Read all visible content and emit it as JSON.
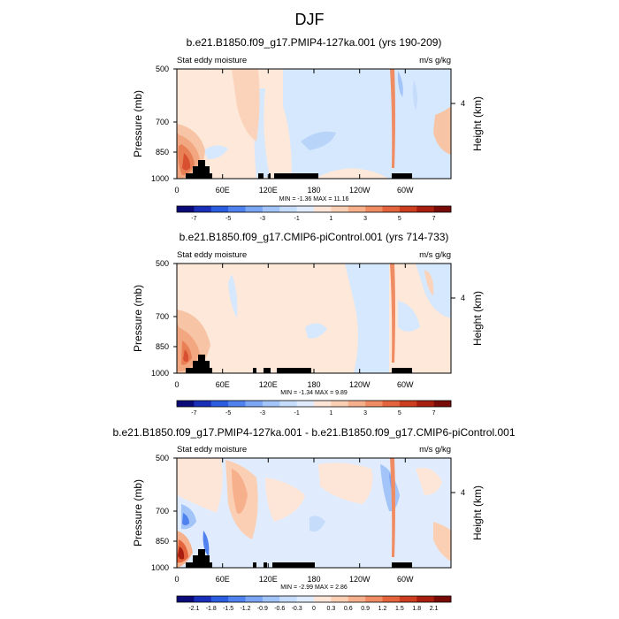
{
  "chart_data": {
    "type": "contour",
    "title": "DJF",
    "panels": [
      {
        "title": "b.e21.B1850.f09_g17.PMIP4-127ka.001 (yrs 190-209)",
        "left_label": "Stat eddy moisture",
        "right_label": "m/s g/kg",
        "ylabel": "Pressure (mb)",
        "ylabel_right": "Height (km)",
        "yticks": [
          "500",
          "700",
          "850",
          "1000"
        ],
        "yticks_right": [
          "4"
        ],
        "xticks": [
          "0",
          "60E",
          "120E",
          "180",
          "120W",
          "60W"
        ],
        "stats": "MIN = -1.36  MAX = 11.16",
        "colorbar_ticks": [
          "-7",
          "-5",
          "-3",
          "-1",
          "1",
          "3",
          "5",
          "7"
        ],
        "colorbar_min": -8,
        "colorbar_max": 8
      },
      {
        "title": "b.e21.B1850.f09_g17.CMIP6-piControl.001 (yrs 714-733)",
        "left_label": "Stat eddy moisture",
        "right_label": "m/s g/kg",
        "ylabel": "Pressure (mb)",
        "ylabel_right": "Height (km)",
        "yticks": [
          "500",
          "700",
          "850",
          "1000"
        ],
        "yticks_right": [
          "4"
        ],
        "xticks": [
          "0",
          "60E",
          "120E",
          "180",
          "120W",
          "60W"
        ],
        "stats": "MIN = -1.34  MAX =  9.89",
        "colorbar_ticks": [
          "-7",
          "-5",
          "-3",
          "-1",
          "1",
          "3",
          "5",
          "7"
        ],
        "colorbar_min": -8,
        "colorbar_max": 8
      },
      {
        "title": "b.e21.B1850.f09_g17.PMIP4-127ka.001 - b.e21.B1850.f09_g17.CMIP6-piControl.001",
        "left_label": "Stat eddy moisture",
        "right_label": "m/s g/kg",
        "ylabel": "Pressure (mb)",
        "ylabel_right": "Height (km)",
        "yticks": [
          "500",
          "700",
          "850",
          "1000"
        ],
        "yticks_right": [
          "4"
        ],
        "xticks": [
          "0",
          "60E",
          "120E",
          "180",
          "120W",
          "60W"
        ],
        "stats": "MIN = -2.99  MAX =  2.86",
        "colorbar_ticks": [
          "-2.1",
          "-1.8",
          "-1.5",
          "-1.2",
          "-0.9",
          "-0.6",
          "-0.3",
          "0",
          "0.3",
          "0.6",
          "0.9",
          "1.2",
          "1.5",
          "1.8",
          "2.1"
        ],
        "colorbar_min": -2.4,
        "colorbar_max": 2.4
      }
    ],
    "colorbar_colors": [
      "#0a0a78",
      "#1a2fb8",
      "#2b5de0",
      "#4f82ee",
      "#7aa6f4",
      "#a2c4f8",
      "#c6dcfb",
      "#e0ecfd",
      "#fde6d8",
      "#fbcfb4",
      "#f7b08c",
      "#f08c63",
      "#e4643d",
      "#cc3e1f",
      "#a81f10",
      "#780a08"
    ]
  }
}
